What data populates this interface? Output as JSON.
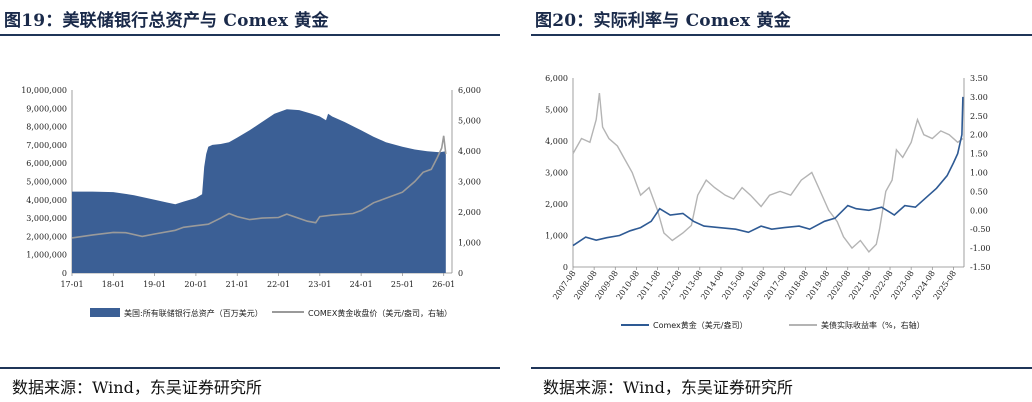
{
  "left": {
    "title": "图19：美联储银行总资产与 Comex 黄金",
    "source": "数据来源：Wind，东吴证券研究所",
    "chart_data": {
      "type": "area",
      "categories": [
        "17-01",
        "18-01",
        "19-01",
        "20-01",
        "21-01",
        "22-01",
        "23-01",
        "24-01",
        "25-01",
        "26-01"
      ],
      "y_left": {
        "ticks": [
          "0",
          "1,000,000",
          "2,000,000",
          "3,000,000",
          "4,000,000",
          "5,000,000",
          "6,000,000",
          "7,000,000",
          "8,000,000",
          "9,000,000",
          "10,000,000"
        ],
        "ylim": [
          0,
          10000000
        ]
      },
      "y_right": {
        "ticks": [
          "0",
          "1,000",
          "2,000",
          "3,000",
          "4,000",
          "5,000",
          "6,000"
        ],
        "ylim": [
          0,
          6000
        ]
      },
      "series": [
        {
          "name": "美国:所有联储银行总资产（百万美元）",
          "axis": "left",
          "color": "#3b5f95",
          "style": "area",
          "x": [
            2017.0,
            2017.5,
            2018.0,
            2018.5,
            2019.0,
            2019.3,
            2019.5,
            2019.7,
            2020.0,
            2020.15,
            2020.2,
            2020.25,
            2020.3,
            2020.4,
            2020.6,
            2020.8,
            2021.0,
            2021.3,
            2021.6,
            2021.9,
            2022.2,
            2022.5,
            2022.8,
            2023.0,
            2023.15,
            2023.2,
            2023.3,
            2023.6,
            2024.0,
            2024.3,
            2024.6,
            2025.0,
            2025.3,
            2025.6,
            2025.9,
            2026.05
          ],
          "values": [
            4450000,
            4450000,
            4420000,
            4250000,
            4000000,
            3850000,
            3760000,
            3900000,
            4100000,
            4300000,
            5800000,
            6500000,
            6900000,
            7000000,
            7050000,
            7150000,
            7400000,
            7800000,
            8250000,
            8700000,
            8950000,
            8900000,
            8700000,
            8550000,
            8350000,
            8700000,
            8550000,
            8250000,
            7800000,
            7450000,
            7150000,
            6900000,
            6750000,
            6650000,
            6600000,
            6650000
          ]
        },
        {
          "name": "COMEX黄金收盘价（美元/盎司，右轴）",
          "axis": "right",
          "color": "#9a9a9a",
          "style": "line",
          "x": [
            2017.0,
            2017.5,
            2018.0,
            2018.3,
            2018.7,
            2019.0,
            2019.5,
            2019.7,
            2020.0,
            2020.3,
            2020.6,
            2020.8,
            2021.0,
            2021.3,
            2021.6,
            2022.0,
            2022.2,
            2022.7,
            2022.9,
            2023.0,
            2023.3,
            2023.8,
            2024.0,
            2024.3,
            2024.6,
            2025.0,
            2025.3,
            2025.5,
            2025.7,
            2025.85,
            2025.95,
            2026.0,
            2026.05
          ],
          "values": [
            1150,
            1250,
            1330,
            1320,
            1200,
            1280,
            1400,
            1500,
            1550,
            1600,
            1800,
            1950,
            1850,
            1750,
            1800,
            1820,
            1930,
            1700,
            1650,
            1850,
            1900,
            1950,
            2050,
            2300,
            2450,
            2650,
            3000,
            3300,
            3400,
            3800,
            4100,
            4500,
            3900
          ]
        }
      ]
    }
  },
  "right": {
    "title": "图20：实际利率与 Comex 黄金",
    "source": "数据来源：Wind，东吴证券研究所",
    "chart_data": {
      "type": "line",
      "categories": [
        "2007-08",
        "2008-08",
        "2009-08",
        "2010-08",
        "2011-08",
        "2012-08",
        "2013-08",
        "2014-08",
        "2015-08",
        "2016-08",
        "2017-08",
        "2018-08",
        "2019-08",
        "2020-08",
        "2021-08",
        "2022-08",
        "2023-08",
        "2024-08",
        "2025-08"
      ],
      "y_left": {
        "ticks": [
          "0",
          "1,000",
          "2,000",
          "3,000",
          "4,000",
          "5,000",
          "6,000"
        ],
        "ylim": [
          0,
          6000
        ]
      },
      "y_right": {
        "ticks": [
          "-1.50",
          "-1.00",
          "-0.50",
          "0.00",
          "0.50",
          "1.00",
          "1.50",
          "2.00",
          "2.50",
          "3.00",
          "3.50"
        ],
        "ylim": [
          -1.5,
          3.5
        ]
      },
      "series": [
        {
          "name": "Comex黄金（美元/盎司）",
          "axis": "left",
          "color": "#2e5a94",
          "x": [
            2007.6,
            2008.2,
            2008.7,
            2009.2,
            2009.8,
            2010.3,
            2010.8,
            2011.3,
            2011.7,
            2012.2,
            2012.8,
            2013.3,
            2013.8,
            2014.5,
            2015.3,
            2015.9,
            2016.5,
            2017.0,
            2017.6,
            2018.3,
            2018.8,
            2019.5,
            2020.0,
            2020.6,
            2021.0,
            2021.6,
            2022.2,
            2022.8,
            2023.3,
            2023.8,
            2024.3,
            2024.8,
            2025.3,
            2025.6,
            2025.8,
            2026.0,
            2026.05
          ],
          "values": [
            680,
            950,
            850,
            930,
            1000,
            1150,
            1250,
            1450,
            1850,
            1650,
            1700,
            1450,
            1300,
            1250,
            1200,
            1100,
            1300,
            1200,
            1250,
            1300,
            1200,
            1450,
            1550,
            1950,
            1850,
            1800,
            1900,
            1650,
            1950,
            1900,
            2200,
            2500,
            2900,
            3300,
            3600,
            4200,
            5400
          ]
        },
        {
          "name": "美债实际收益率（%，右轴）",
          "axis": "right",
          "color": "#b4b4b4",
          "x": [
            2007.6,
            2008.0,
            2008.4,
            2008.7,
            2008.85,
            2009.0,
            2009.3,
            2009.7,
            2010.0,
            2010.4,
            2010.8,
            2011.2,
            2011.6,
            2011.9,
            2012.3,
            2012.8,
            2013.2,
            2013.5,
            2013.9,
            2014.3,
            2014.8,
            2015.2,
            2015.6,
            2016.0,
            2016.5,
            2016.9,
            2017.4,
            2017.9,
            2018.4,
            2018.9,
            2019.3,
            2019.7,
            2020.1,
            2020.4,
            2020.8,
            2021.2,
            2021.6,
            2021.95,
            2022.1,
            2022.4,
            2022.7,
            2022.9,
            2023.2,
            2023.6,
            2023.9,
            2024.2,
            2024.6,
            2025.0,
            2025.4,
            2025.8,
            2026.05
          ],
          "values": [
            1.5,
            1.9,
            1.8,
            2.4,
            3.1,
            2.2,
            1.9,
            1.7,
            1.4,
            1.0,
            0.4,
            0.6,
            0.0,
            -0.6,
            -0.8,
            -0.6,
            -0.4,
            0.4,
            0.8,
            0.6,
            0.4,
            0.3,
            0.6,
            0.4,
            0.1,
            0.4,
            0.5,
            0.4,
            0.8,
            1.0,
            0.5,
            0.0,
            -0.3,
            -0.7,
            -1.0,
            -0.8,
            -1.1,
            -0.9,
            -0.5,
            0.5,
            0.8,
            1.6,
            1.4,
            1.8,
            2.4,
            2.0,
            1.9,
            2.1,
            2.0,
            1.8,
            1.9
          ]
        }
      ]
    }
  }
}
